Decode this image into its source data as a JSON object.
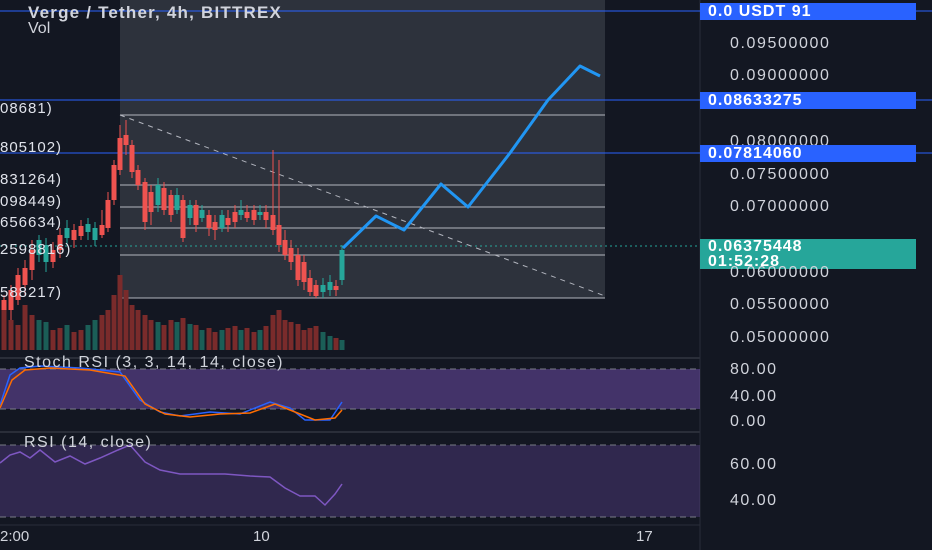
{
  "header": {
    "symbol_line": "Verge / Tether, 4h, BITTREX",
    "vol_label": "Vol"
  },
  "price_axis": {
    "labels": [
      "0.09500000",
      "0.09000000",
      "0.08000000",
      "0.07500000",
      "0.07000000",
      "0.06000000",
      "0.05500000",
      "0.05000000"
    ],
    "top_badge": "0.0 USDT 91",
    "level_1": "0.08633275",
    "level_2": "0.07814060",
    "current_price": "0.06375448",
    "countdown": "01:52:28"
  },
  "fib_labels": [
    "08681)",
    "805102)",
    "831264)",
    "098449)",
    "656634)",
    "2598816)",
    "588217)"
  ],
  "stoch_rsi": {
    "title": "Stoch RSI (3, 3, 14, 14, close)",
    "axis": [
      "80.00",
      "40.00",
      "0.00"
    ]
  },
  "rsi": {
    "title": "RSI (14, close)",
    "axis": [
      "60.00",
      "40.00"
    ]
  },
  "time_axis": [
    "2:00",
    "10",
    "17"
  ],
  "colors": {
    "background": "#131722",
    "up": "#26a69a",
    "down": "#ef5350",
    "projection": "#2196f3",
    "indicator_band": "#7e57c2"
  }
}
